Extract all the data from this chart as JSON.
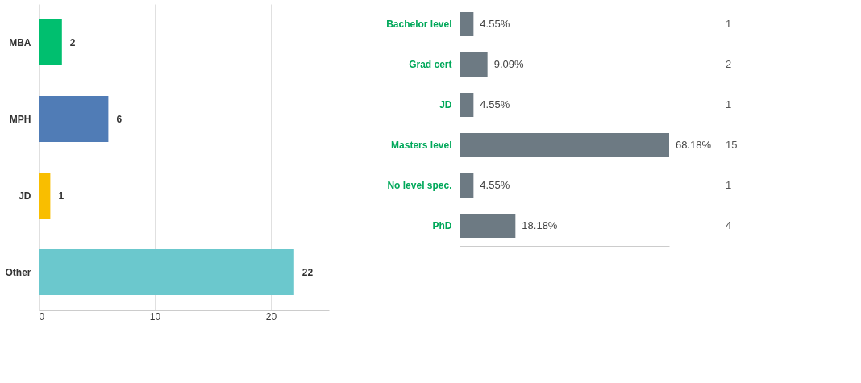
{
  "chart_data": [
    {
      "type": "bar",
      "orientation": "horizontal",
      "categories": [
        "MBA",
        "MPH",
        "JD",
        "Other"
      ],
      "values": [
        2,
        6,
        1,
        22
      ],
      "colors": [
        "#00bf6f",
        "#507cb6",
        "#f9be00",
        "#6bc8cd"
      ],
      "xlim": [
        0,
        25
      ],
      "xticks": [
        0,
        10,
        20
      ],
      "grid": "x",
      "data_labels": true
    },
    {
      "type": "bar",
      "orientation": "horizontal",
      "categories": [
        "Bachelor level",
        "Grad cert",
        "JD",
        "Masters level",
        "No level spec.",
        "PhD"
      ],
      "values": [
        4.55,
        9.09,
        4.55,
        68.18,
        4.55,
        18.18
      ],
      "color": "#6d7a83",
      "tick_labels": "y",
      "value_labels": [
        "4.55%",
        "9.09%",
        "4.55%",
        "68.18%",
        "4.55%",
        "18.18%"
      ],
      "annotations": [
        "1",
        "2",
        "1",
        "15",
        "1",
        "4"
      ]
    }
  ]
}
